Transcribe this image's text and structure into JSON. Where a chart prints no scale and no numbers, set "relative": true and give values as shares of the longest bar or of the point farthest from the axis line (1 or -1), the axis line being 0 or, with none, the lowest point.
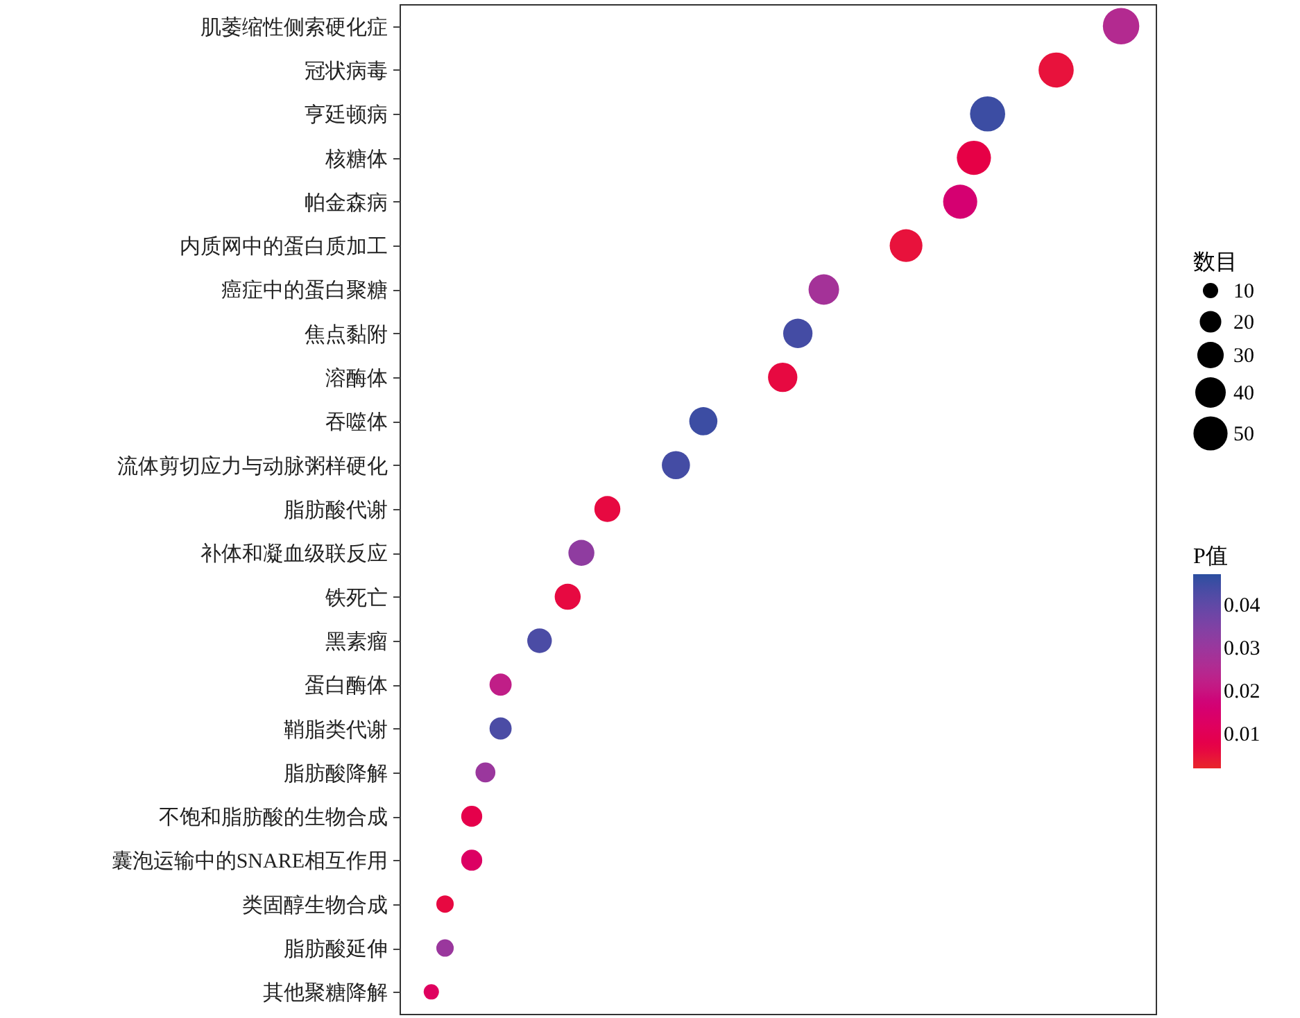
{
  "chart_data": {
    "type": "bubble",
    "orientation": "horizontal",
    "relative": true,
    "legend_title": "数目",
    "clabel": "P值",
    "categories": [
      "肌萎缩性侧索硬化症",
      "冠状病毒",
      "亨廷顿病",
      "核糖体",
      "帕金森病",
      "内质网中的蛋白质加工",
      "癌症中的蛋白聚糖",
      "焦点黏附",
      "溶酶体",
      "吞噬体",
      "流体剪切应力与动脉粥样硬化",
      "脂肪酸代谢",
      "补体和凝血级联反应",
      "铁死亡",
      "黑素瘤",
      "蛋白酶体",
      "鞘脂类代谢",
      "脂肪酸降解",
      "不饱和脂肪酸的生物合成",
      "囊泡运输中的SNARE相互作用",
      "类固醇生物合成",
      "脂肪酸延伸",
      "其他聚糖降解"
    ],
    "values": [
      1,
      0.91,
      0.815,
      0.796,
      0.777,
      0.702,
      0.588,
      0.552,
      0.531,
      0.421,
      0.383,
      0.288,
      0.252,
      0.233,
      0.194,
      0.14,
      0.14,
      0.119,
      0.1,
      0.1,
      0.063,
      0.063,
      0.044
    ],
    "sizes": [
      57,
      53,
      53,
      50,
      50,
      46,
      40,
      37,
      37,
      34,
      34,
      29,
      29,
      29,
      26,
      21,
      21,
      17,
      19,
      19,
      13,
      13,
      10
    ],
    "size_legend": [
      10,
      20,
      30,
      40,
      50
    ],
    "cvalues": [
      0.025,
      0.005,
      0.045,
      0.007,
      0.016,
      0.005,
      0.028,
      0.044,
      0.006,
      0.045,
      0.044,
      0.006,
      0.032,
      0.006,
      0.043,
      0.022,
      0.043,
      0.03,
      0.008,
      0.013,
      0.006,
      0.03,
      0.012
    ],
    "clim": [
      0.002,
      0.047
    ],
    "cticks": [
      0.01,
      0.02,
      0.03,
      0.04
    ]
  }
}
